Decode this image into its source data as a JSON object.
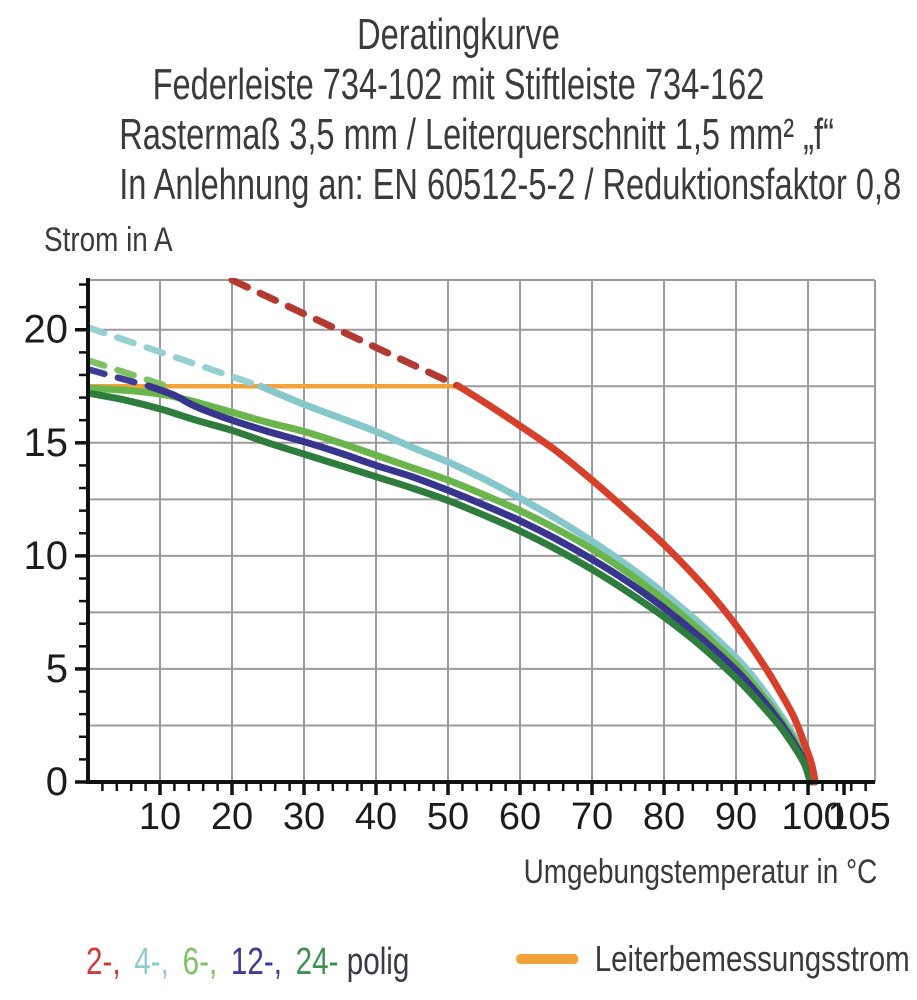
{
  "title": {
    "line1": "Deratingkurve",
    "line2": "Federleiste 734-102 mit Stiftleiste 734-162",
    "line3": "Rastermaß 3,5 mm / Leiterquerschnitt 1,5 mm² „f“",
    "line4": "In Anlehnung an: EN 60512-5-2 / Reduktionsfaktor 0,8"
  },
  "chart_data": {
    "type": "line",
    "ylabel": "Strom in A",
    "xlabel": "Umgebungstemperatur in °C",
    "xlim": [
      0,
      109.3
    ],
    "ylim": [
      0,
      22.2
    ],
    "x_major_ticks": [
      10,
      20,
      30,
      40,
      50,
      60,
      70,
      80,
      90,
      100,
      105
    ],
    "y_major_ticks": [
      0,
      5,
      10,
      15,
      20
    ],
    "x_minor_step": 2,
    "y_minor_step": 1,
    "grid": {
      "x_step": 10,
      "y_step": 2.5,
      "color": "#9b9b9b"
    },
    "rated_current_a": 17.5,
    "series": [
      {
        "name": "Leiterbemessungsstrom",
        "color": "#f2a23b",
        "style": "solid",
        "width": 4.5,
        "points": [
          [
            0,
            17.5
          ],
          [
            51.5,
            17.5
          ]
        ]
      },
      {
        "name": "2-polig extrapoliert",
        "color": "#b23a31",
        "style": "dashed",
        "width": 7,
        "points": [
          [
            20,
            22.2
          ],
          [
            51.5,
            17.5
          ]
        ]
      },
      {
        "name": "4-polig extrapoliert",
        "color": "#97d0d3",
        "style": "dashed",
        "width": 6.5,
        "points": [
          [
            0,
            20.1
          ],
          [
            24,
            17.5
          ]
        ]
      },
      {
        "name": "6-polig extrapoliert",
        "color": "#80c263",
        "style": "dashed",
        "width": 6.5,
        "points": [
          [
            0,
            18.65
          ],
          [
            11,
            17.5
          ]
        ]
      },
      {
        "name": "12-polig extrapoliert",
        "color": "#403d99",
        "style": "dashed",
        "width": 6.5,
        "points": [
          [
            0,
            18.25
          ],
          [
            8.5,
            17.5
          ]
        ]
      },
      {
        "name": "4-polig",
        "color": "#85c7cb",
        "style": "solid",
        "width": 7,
        "points": [
          [
            24,
            17.5
          ],
          [
            30,
            16.7
          ],
          [
            35,
            16.1
          ],
          [
            40,
            15.5
          ],
          [
            45,
            14.8
          ],
          [
            50,
            14.15
          ],
          [
            55,
            13.4
          ],
          [
            60,
            12.55
          ],
          [
            65,
            11.65
          ],
          [
            70,
            10.65
          ],
          [
            75,
            9.55
          ],
          [
            80,
            8.35
          ],
          [
            85,
            7.0
          ],
          [
            90,
            5.5
          ],
          [
            93,
            4.4
          ],
          [
            96,
            3.05
          ],
          [
            98,
            2.05
          ],
          [
            99.5,
            1.1
          ],
          [
            100.7,
            0
          ]
        ]
      },
      {
        "name": "6-polig",
        "color": "#6ab54c",
        "style": "solid",
        "width": 7,
        "points": [
          [
            0,
            17.42
          ],
          [
            6,
            17.3
          ],
          [
            11,
            17.1
          ],
          [
            15,
            16.8
          ],
          [
            20,
            16.35
          ],
          [
            25,
            15.9
          ],
          [
            30,
            15.5
          ],
          [
            35,
            15.0
          ],
          [
            40,
            14.45
          ],
          [
            45,
            13.9
          ],
          [
            50,
            13.35
          ],
          [
            55,
            12.7
          ],
          [
            60,
            12.0
          ],
          [
            65,
            11.2
          ],
          [
            70,
            10.3
          ],
          [
            75,
            9.25
          ],
          [
            80,
            8.05
          ],
          [
            85,
            6.7
          ],
          [
            90,
            5.2
          ],
          [
            93,
            4.1
          ],
          [
            96,
            2.85
          ],
          [
            98,
            1.9
          ],
          [
            99.5,
            1.0
          ],
          [
            100.5,
            0
          ]
        ]
      },
      {
        "name": "12-polig",
        "color": "#37358e",
        "style": "solid",
        "width": 7,
        "points": [
          [
            8.5,
            17.5
          ],
          [
            12,
            17.1
          ],
          [
            15,
            16.6
          ],
          [
            20,
            16.0
          ],
          [
            25,
            15.5
          ],
          [
            30,
            15.05
          ],
          [
            35,
            14.55
          ],
          [
            40,
            14.0
          ],
          [
            45,
            13.5
          ],
          [
            50,
            12.9
          ],
          [
            55,
            12.25
          ],
          [
            60,
            11.55
          ],
          [
            65,
            10.75
          ],
          [
            70,
            9.85
          ],
          [
            75,
            8.85
          ],
          [
            80,
            7.7
          ],
          [
            85,
            6.4
          ],
          [
            90,
            4.95
          ],
          [
            93,
            3.9
          ],
          [
            96,
            2.7
          ],
          [
            98,
            1.75
          ],
          [
            99.5,
            0.9
          ],
          [
            100.4,
            0
          ]
        ]
      },
      {
        "name": "24-polig",
        "color": "#2f7d3e",
        "style": "solid",
        "width": 7,
        "points": [
          [
            0,
            17.2
          ],
          [
            5,
            16.9
          ],
          [
            10,
            16.5
          ],
          [
            15,
            16.0
          ],
          [
            20,
            15.55
          ],
          [
            25,
            15.0
          ],
          [
            30,
            14.5
          ],
          [
            35,
            14.0
          ],
          [
            40,
            13.5
          ],
          [
            45,
            13.0
          ],
          [
            50,
            12.45
          ],
          [
            55,
            11.8
          ],
          [
            60,
            11.1
          ],
          [
            65,
            10.3
          ],
          [
            70,
            9.4
          ],
          [
            75,
            8.4
          ],
          [
            80,
            7.3
          ],
          [
            85,
            6.05
          ],
          [
            90,
            4.6
          ],
          [
            93,
            3.6
          ],
          [
            96,
            2.5
          ],
          [
            98,
            1.6
          ],
          [
            99.5,
            0.8
          ],
          [
            100.3,
            0
          ]
        ]
      },
      {
        "name": "2-polig",
        "color": "#d6402a",
        "style": "solid",
        "width": 7,
        "points": [
          [
            51.5,
            17.5
          ],
          [
            55,
            16.8
          ],
          [
            60,
            15.75
          ],
          [
            65,
            14.65
          ],
          [
            70,
            13.35
          ],
          [
            75,
            11.95
          ],
          [
            80,
            10.5
          ],
          [
            85,
            8.85
          ],
          [
            88,
            7.75
          ],
          [
            91,
            6.5
          ],
          [
            94,
            5.1
          ],
          [
            96,
            4.05
          ],
          [
            98,
            2.9
          ],
          [
            99.5,
            1.7
          ],
          [
            100.5,
            0.8
          ],
          [
            101,
            0
          ]
        ]
      }
    ]
  },
  "legend": {
    "poles": [
      {
        "label": "2-,",
        "color": "#cf3a3a"
      },
      {
        "label": "4-,",
        "color": "#8fccd1"
      },
      {
        "label": "6-,",
        "color": "#7fc263"
      },
      {
        "label": "12-,",
        "color": "#3c3a94"
      },
      {
        "label": "24-",
        "color": "#3f8f4f"
      }
    ],
    "suffix": "polig",
    "rated": {
      "label": "Leiterbemessungsstrom",
      "color": "#f2a23b"
    }
  }
}
